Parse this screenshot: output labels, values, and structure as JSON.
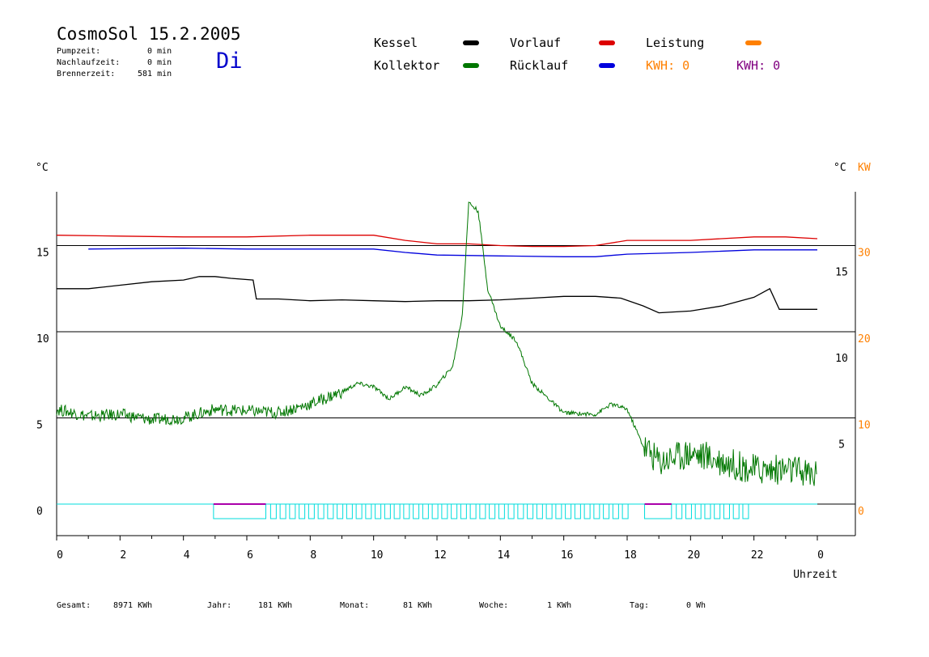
{
  "header": {
    "title": "CosmoSol 15.2.2005",
    "day": "Di",
    "pumpzeit_label": "Pumpzeit:",
    "pumpzeit_value": "0 min",
    "nachlaufzeit_label": "Nachlaufzeit:",
    "nachlaufzeit_value": "0 min",
    "brennerzeit_label": "Brennerzeit:",
    "brennerzeit_value": "581 min"
  },
  "legend": {
    "kessel": "Kessel",
    "kollektor": "Kollektor",
    "vorlauf": "Vorlauf",
    "ruecklauf": "Rücklauf",
    "leistung": "Leistung",
    "kwh1": "KWH: 0",
    "kwh2": "KWH: 0"
  },
  "colors": {
    "kessel": "#000000",
    "kollektor": "#007700",
    "vorlauf": "#dd0000",
    "ruecklauf": "#0000dd",
    "leistung": "#ff8000",
    "kwh2": "#800080",
    "pump": "#00dddd",
    "burner": "#aa00aa"
  },
  "footer": {
    "gesamt_label": "Gesamt:",
    "gesamt_value": "8971 KWh",
    "jahr_label": "Jahr:",
    "jahr_value": "181 KWh",
    "monat_label": "Monat:",
    "monat_value": "81 KWh",
    "woche_label": "Woche:",
    "woche_value": "1 KWh",
    "tag_label": "Tag:",
    "tag_value": "0 Wh"
  },
  "chart_data": {
    "type": "line",
    "xlabel": "Uhrzeit",
    "ylabel_left": "°C",
    "ylabel_right": "°C",
    "ylabel_right2": "KW",
    "xlim": [
      0,
      24
    ],
    "ylim_left": [
      -2,
      19
    ],
    "x_ticks": [
      "0",
      "2",
      "4",
      "6",
      "8",
      "10",
      "12",
      "14",
      "16",
      "18",
      "20",
      "22",
      "0"
    ],
    "y_ticks_left": [
      "0",
      "5",
      "10",
      "15"
    ],
    "y_ticks_right": [
      "5",
      "10",
      "15"
    ],
    "y_ticks_right_kw": [
      "0",
      "10",
      "20",
      "30"
    ],
    "grid": "horizontal",
    "series": [
      {
        "name": "Vorlauf",
        "color_key": "vorlauf",
        "points": [
          [
            0,
            15.6
          ],
          [
            2,
            15.55
          ],
          [
            4,
            15.5
          ],
          [
            6,
            15.5
          ],
          [
            8,
            15.6
          ],
          [
            10,
            15.6
          ],
          [
            11,
            15.3
          ],
          [
            12,
            15.1
          ],
          [
            13,
            15.1
          ],
          [
            14,
            15.0
          ],
          [
            15,
            14.95
          ],
          [
            16,
            14.95
          ],
          [
            17,
            15.0
          ],
          [
            18,
            15.3
          ],
          [
            20,
            15.3
          ],
          [
            22,
            15.5
          ],
          [
            23,
            15.5
          ],
          [
            24,
            15.4
          ]
        ]
      },
      {
        "name": "Rücklauf",
        "color_key": "ruecklauf",
        "points": [
          [
            1,
            14.8
          ],
          [
            4,
            14.85
          ],
          [
            6,
            14.8
          ],
          [
            8,
            14.8
          ],
          [
            10,
            14.8
          ],
          [
            11,
            14.6
          ],
          [
            12,
            14.45
          ],
          [
            14,
            14.4
          ],
          [
            16,
            14.35
          ],
          [
            17,
            14.35
          ],
          [
            18,
            14.5
          ],
          [
            20,
            14.6
          ],
          [
            22,
            14.75
          ],
          [
            24,
            14.75
          ]
        ]
      },
      {
        "name": "Kessel",
        "color_key": "kessel",
        "points": [
          [
            0,
            12.5
          ],
          [
            1,
            12.5
          ],
          [
            2,
            12.7
          ],
          [
            3,
            12.9
          ],
          [
            4,
            13.0
          ],
          [
            4.5,
            13.2
          ],
          [
            5,
            13.2
          ],
          [
            5.5,
            13.1
          ],
          [
            6.2,
            13.0
          ],
          [
            6.3,
            11.9
          ],
          [
            7,
            11.9
          ],
          [
            8,
            11.8
          ],
          [
            9,
            11.85
          ],
          [
            10,
            11.8
          ],
          [
            11,
            11.75
          ],
          [
            12,
            11.8
          ],
          [
            13,
            11.8
          ],
          [
            14,
            11.85
          ],
          [
            15,
            11.95
          ],
          [
            16,
            12.05
          ],
          [
            17,
            12.05
          ],
          [
            17.8,
            11.95
          ],
          [
            18.5,
            11.5
          ],
          [
            19,
            11.1
          ],
          [
            20,
            11.2
          ],
          [
            21,
            11.5
          ],
          [
            22,
            12.0
          ],
          [
            22.5,
            12.5
          ],
          [
            22.8,
            11.3
          ],
          [
            24,
            11.3
          ]
        ]
      },
      {
        "name": "Kollektor",
        "color_key": "kollektor",
        "points": [
          [
            0,
            5.5
          ],
          [
            1,
            5.1
          ],
          [
            2,
            5.2
          ],
          [
            3,
            4.9
          ],
          [
            4,
            5.0
          ],
          [
            5,
            5.5
          ],
          [
            6,
            5.4
          ],
          [
            7,
            5.3
          ],
          [
            8,
            5.8
          ],
          [
            9,
            6.5
          ],
          [
            9.5,
            7.0
          ],
          [
            10,
            6.8
          ],
          [
            10.5,
            6.1
          ],
          [
            11,
            6.8
          ],
          [
            11.5,
            6.3
          ],
          [
            12,
            6.9
          ],
          [
            12.5,
            8.0
          ],
          [
            12.8,
            11.0
          ],
          [
            13.0,
            17.5
          ],
          [
            13.3,
            17.0
          ],
          [
            13.6,
            12.5
          ],
          [
            14,
            10.3
          ],
          [
            14.5,
            9.5
          ],
          [
            15,
            7.0
          ],
          [
            16,
            5.3
          ],
          [
            17,
            5.2
          ],
          [
            17.5,
            5.8
          ],
          [
            18,
            5.5
          ],
          [
            18.5,
            3.4
          ],
          [
            19,
            2.5
          ],
          [
            20,
            3.0
          ],
          [
            21,
            2.5
          ],
          [
            22,
            2.0
          ],
          [
            23,
            2.0
          ],
          [
            24,
            1.7
          ]
        ]
      }
    ],
    "burner_segments": [
      [
        4.95,
        6.6
      ],
      [
        18.55,
        19.4
      ]
    ],
    "pump_pulses": [
      6.75,
      7.05,
      7.35,
      7.65,
      7.95,
      8.25,
      8.55,
      8.85,
      9.15,
      9.45,
      9.75,
      10.05,
      10.35,
      10.65,
      10.95,
      11.25,
      11.55,
      11.85,
      12.15,
      12.45,
      12.75,
      13.05,
      13.35,
      13.65,
      13.95,
      14.25,
      14.55,
      14.85,
      15.15,
      15.45,
      15.75,
      16.05,
      16.35,
      16.65,
      16.95,
      17.25,
      17.55,
      17.85,
      19.55,
      19.85,
      20.15,
      20.45,
      20.75,
      21.05,
      21.35,
      21.65
    ]
  }
}
